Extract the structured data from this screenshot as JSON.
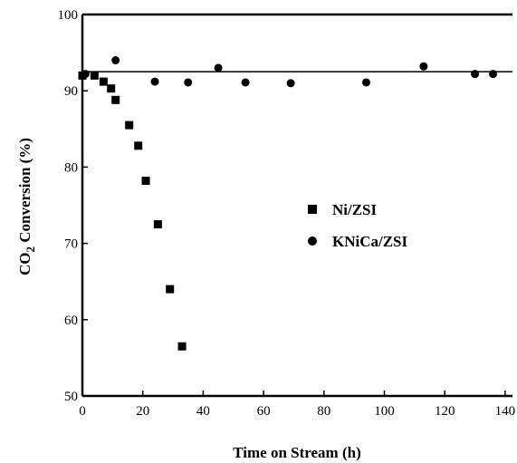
{
  "chart_data": {
    "type": "scatter",
    "title": "",
    "xlabel": "Time on Stream (h)",
    "ylabel_parts": [
      "CO",
      "2",
      " Conversion (%)"
    ],
    "xlim": [
      0,
      150
    ],
    "ylim": [
      50,
      100
    ],
    "xticks": [
      0,
      20,
      40,
      60,
      80,
      100,
      120,
      140
    ],
    "yticks": [
      50,
      60,
      70,
      80,
      90,
      100
    ],
    "grid": false,
    "legend_position": "center-right",
    "series": [
      {
        "name": "Ni/ZSI",
        "marker": "square",
        "color": "#000000",
        "x": [
          0,
          4,
          7,
          9.5,
          11,
          15.5,
          18.5,
          21,
          25,
          29,
          33
        ],
        "y": [
          92,
          92,
          91.2,
          90.3,
          88.8,
          85.5,
          82.8,
          78.2,
          72.5,
          64,
          56.5
        ]
      },
      {
        "name": "KNiCa/ZSI",
        "marker": "circle",
        "color": "#000000",
        "x": [
          1,
          11,
          24,
          35,
          45,
          54,
          69,
          94,
          113,
          130,
          136
        ],
        "y": [
          92.2,
          94,
          91.2,
          91.1,
          93,
          91.1,
          91,
          91.1,
          93.2,
          92.2,
          92.2
        ]
      }
    ],
    "reference_line": {
      "y": 92.5,
      "style": "solid"
    }
  }
}
